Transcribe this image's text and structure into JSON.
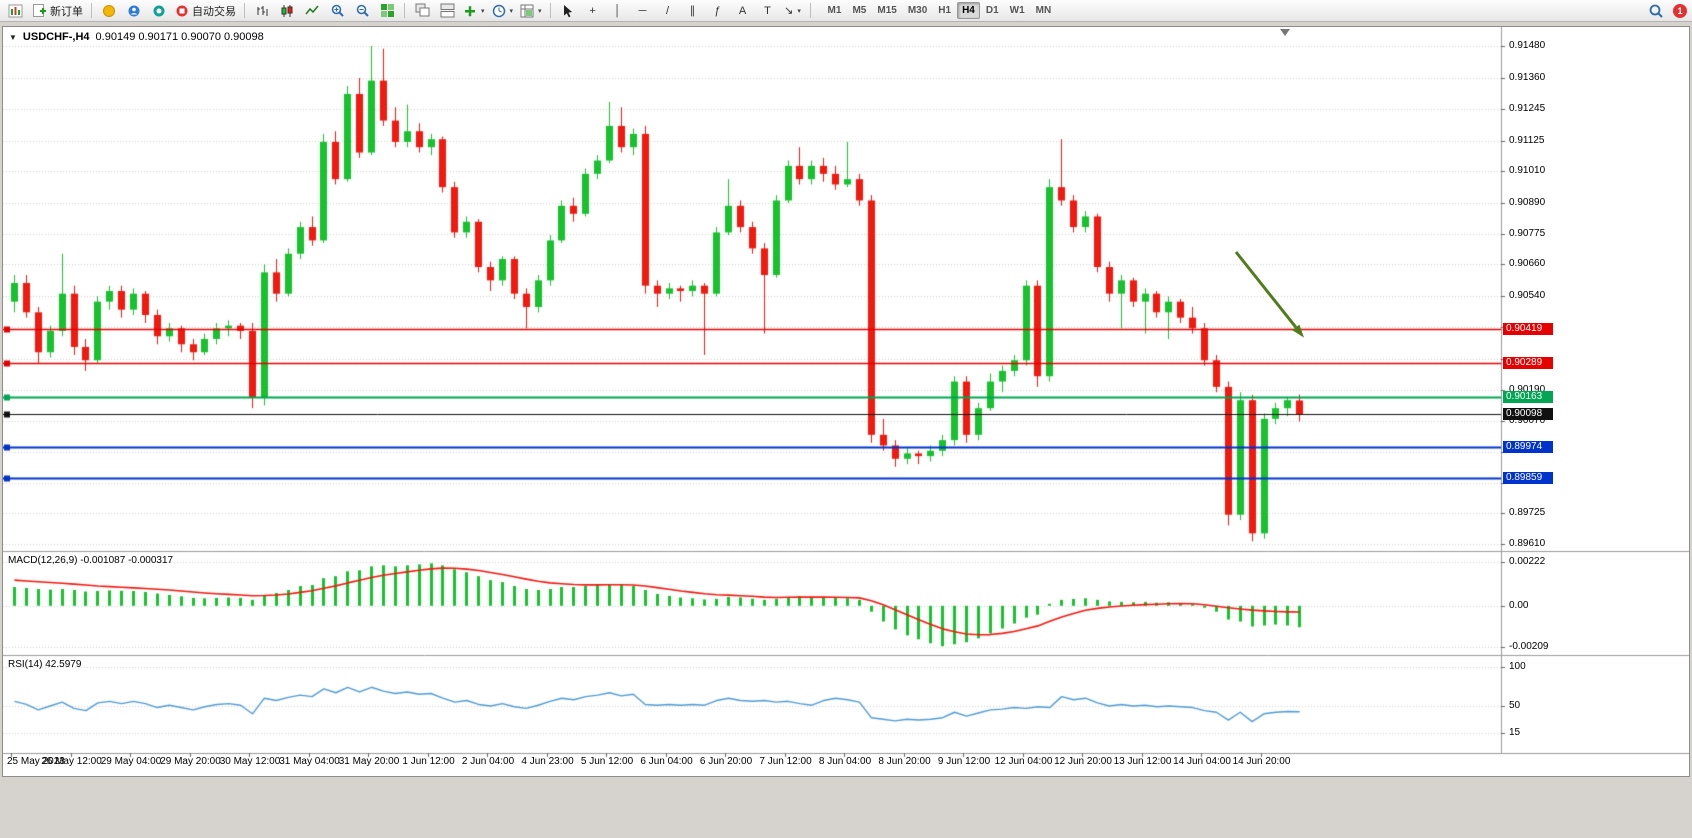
{
  "toolbar": {
    "buttons": {
      "new_order": "新订单",
      "auto_trading": "自动交易"
    },
    "timeframes": [
      "M1",
      "M5",
      "M15",
      "M30",
      "H1",
      "H4",
      "D1",
      "W1",
      "MN"
    ],
    "active_timeframe": "H4",
    "notification_count": "1"
  },
  "icons": {
    "caret": "▾",
    "dropdown_triangle": "▼",
    "crosshair": "+",
    "vertical_line": "│",
    "horizontal_line": "─",
    "trendline": "/",
    "channel": "∥",
    "fibonacci": "ƒ",
    "text_tool": "A",
    "label_tool": "T",
    "arrow_tool": "↘"
  },
  "chart": {
    "symbol_period": "USDCHF-,H4",
    "ohlc_text": "0.90149 0.90171 0.90070 0.90098",
    "ylim": [
      0.8961,
      0.9148
    ],
    "price_ticks": [
      "0.91480",
      "0.91360",
      "0.91245",
      "0.91125",
      "0.91010",
      "0.90890",
      "0.90775",
      "0.90660",
      "0.90540",
      "0.90425",
      "0.90305",
      "0.90190",
      "0.90070",
      "0.89955",
      "0.89840",
      "0.89725",
      "0.89610"
    ],
    "levels": [
      {
        "price": 0.90419,
        "label": "0.90419",
        "color": "#e60000",
        "width": 1.5,
        "name": "resistance-line-1"
      },
      {
        "price": 0.90289,
        "label": "0.90289",
        "color": "#e60000",
        "width": 1.5,
        "name": "resistance-line-2"
      },
      {
        "price": 0.90163,
        "label": "0.90163",
        "color": "#00a651",
        "width": 2,
        "name": "support-line-green"
      },
      {
        "price": 0.90098,
        "label": "0.90098",
        "color": "#111111",
        "width": 1,
        "name": "current-price-line"
      },
      {
        "price": 0.89974,
        "label": "0.89974",
        "color": "#0033cc",
        "width": 2,
        "name": "support-line-blue-1"
      },
      {
        "price": 0.89859,
        "label": "0.89859",
        "color": "#0033cc",
        "width": 2,
        "name": "support-line-blue-2"
      }
    ],
    "time_labels": [
      "25 May 2023",
      "26 May 12:00",
      "29 May 04:00",
      "29 May 20:00",
      "30 May 12:00",
      "31 May 04:00",
      "31 May 20:00",
      "1 Jun 12:00",
      "2 Jun 04:00",
      "4 Jun 23:00",
      "5 Jun 12:00",
      "6 Jun 04:00",
      "6 Jun 20:00",
      "7 Jun 12:00",
      "8 Jun 04:00",
      "8 Jun 20:00",
      "9 Jun 12:00",
      "12 Jun 04:00",
      "12 Jun 20:00",
      "13 Jun 12:00",
      "14 Jun 04:00",
      "14 Jun 20:00"
    ],
    "colors": {
      "up": "#17c22e",
      "down": "#f2190f",
      "grid": "#d4d4d4",
      "background": "#ffffff"
    },
    "candles": [
      [
        0.9052,
        0.9062,
        0.9048,
        0.9059
      ],
      [
        0.9059,
        0.9062,
        0.9046,
        0.9048
      ],
      [
        0.9048,
        0.905,
        0.9029,
        0.9033
      ],
      [
        0.9033,
        0.9043,
        0.9031,
        0.9041
      ],
      [
        0.9041,
        0.907,
        0.9039,
        0.9055
      ],
      [
        0.9055,
        0.9058,
        0.9032,
        0.9035
      ],
      [
        0.9035,
        0.9038,
        0.9026,
        0.903
      ],
      [
        0.903,
        0.9054,
        0.9029,
        0.9052
      ],
      [
        0.9052,
        0.9058,
        0.9049,
        0.9056
      ],
      [
        0.9056,
        0.9058,
        0.9046,
        0.9049
      ],
      [
        0.9049,
        0.9057,
        0.9047,
        0.9055
      ],
      [
        0.9055,
        0.9056,
        0.9044,
        0.9047
      ],
      [
        0.9047,
        0.9049,
        0.9036,
        0.9039
      ],
      [
        0.9039,
        0.9044,
        0.9037,
        0.9042
      ],
      [
        0.9042,
        0.9043,
        0.9033,
        0.9036
      ],
      [
        0.9036,
        0.9038,
        0.903,
        0.9033
      ],
      [
        0.9033,
        0.904,
        0.9032,
        0.9038
      ],
      [
        0.9038,
        0.9044,
        0.9036,
        0.9042
      ],
      [
        0.9042,
        0.9045,
        0.9039,
        0.9043
      ],
      [
        0.9043,
        0.9044,
        0.9038,
        0.9041
      ],
      [
        0.9041,
        0.9044,
        0.9012,
        0.9016
      ],
      [
        0.9016,
        0.9066,
        0.9013,
        0.9063
      ],
      [
        0.9063,
        0.9068,
        0.9052,
        0.9055
      ],
      [
        0.9055,
        0.9072,
        0.9054,
        0.907
      ],
      [
        0.907,
        0.9082,
        0.9068,
        0.908
      ],
      [
        0.908,
        0.9084,
        0.9073,
        0.9075
      ],
      [
        0.9075,
        0.9115,
        0.9074,
        0.9112
      ],
      [
        0.9112,
        0.9116,
        0.9096,
        0.9098
      ],
      [
        0.9098,
        0.9133,
        0.9097,
        0.913
      ],
      [
        0.913,
        0.9136,
        0.9106,
        0.9108
      ],
      [
        0.9108,
        0.9148,
        0.9107,
        0.9135
      ],
      [
        0.9135,
        0.9147,
        0.9118,
        0.912
      ],
      [
        0.912,
        0.9125,
        0.911,
        0.9112
      ],
      [
        0.9112,
        0.9126,
        0.911,
        0.9116
      ],
      [
        0.9116,
        0.9119,
        0.9108,
        0.911
      ],
      [
        0.911,
        0.9115,
        0.9107,
        0.9113
      ],
      [
        0.9113,
        0.9114,
        0.9093,
        0.9095
      ],
      [
        0.9095,
        0.9097,
        0.9076,
        0.9078
      ],
      [
        0.9078,
        0.9084,
        0.9076,
        0.9082
      ],
      [
        0.9082,
        0.9083,
        0.9063,
        0.9065
      ],
      [
        0.9065,
        0.9067,
        0.9056,
        0.906
      ],
      [
        0.906,
        0.9069,
        0.9058,
        0.9068
      ],
      [
        0.9068,
        0.9069,
        0.9053,
        0.9055
      ],
      [
        0.9055,
        0.9057,
        0.9042,
        0.905
      ],
      [
        0.905,
        0.9062,
        0.9048,
        0.906
      ],
      [
        0.906,
        0.9077,
        0.9058,
        0.9075
      ],
      [
        0.9075,
        0.909,
        0.9074,
        0.9088
      ],
      [
        0.9088,
        0.9091,
        0.9082,
        0.9085
      ],
      [
        0.9085,
        0.9102,
        0.9084,
        0.91
      ],
      [
        0.91,
        0.9107,
        0.9098,
        0.9105
      ],
      [
        0.9105,
        0.9127,
        0.9104,
        0.9118
      ],
      [
        0.9118,
        0.9125,
        0.9108,
        0.911
      ],
      [
        0.911,
        0.9117,
        0.9107,
        0.9115
      ],
      [
        0.9115,
        0.9118,
        0.9055,
        0.9058
      ],
      [
        0.9058,
        0.906,
        0.905,
        0.9055
      ],
      [
        0.9055,
        0.9059,
        0.9053,
        0.9057
      ],
      [
        0.9057,
        0.9058,
        0.9052,
        0.9056
      ],
      [
        0.9056,
        0.906,
        0.9054,
        0.9058
      ],
      [
        0.9058,
        0.9059,
        0.9032,
        0.9055
      ],
      [
        0.9055,
        0.908,
        0.9054,
        0.9078
      ],
      [
        0.9078,
        0.9098,
        0.9077,
        0.9088
      ],
      [
        0.9088,
        0.909,
        0.9078,
        0.908
      ],
      [
        0.908,
        0.9082,
        0.907,
        0.9072
      ],
      [
        0.9072,
        0.9074,
        0.904,
        0.9062
      ],
      [
        0.9062,
        0.9092,
        0.9061,
        0.909
      ],
      [
        0.909,
        0.9105,
        0.9089,
        0.9103
      ],
      [
        0.9103,
        0.911,
        0.9096,
        0.9098
      ],
      [
        0.9098,
        0.9105,
        0.9096,
        0.9103
      ],
      [
        0.9103,
        0.9106,
        0.9097,
        0.91
      ],
      [
        0.91,
        0.9103,
        0.9094,
        0.9096
      ],
      [
        0.9096,
        0.9112,
        0.9095,
        0.9098
      ],
      [
        0.9098,
        0.91,
        0.9088,
        0.909
      ],
      [
        0.909,
        0.9092,
        0.8999,
        0.9002
      ],
      [
        0.9002,
        0.9008,
        0.8996,
        0.8998
      ],
      [
        0.8998,
        0.9,
        0.899,
        0.8993
      ],
      [
        0.8993,
        0.8997,
        0.8991,
        0.8995
      ],
      [
        0.8995,
        0.8996,
        0.8991,
        0.8994
      ],
      [
        0.8994,
        0.8998,
        0.8992,
        0.8996
      ],
      [
        0.8996,
        0.9002,
        0.8994,
        0.9
      ],
      [
        0.9,
        0.9024,
        0.8998,
        0.9022
      ],
      [
        0.9022,
        0.9024,
        0.8999,
        0.9002
      ],
      [
        0.9002,
        0.9014,
        0.9,
        0.9012
      ],
      [
        0.9012,
        0.9025,
        0.9011,
        0.9022
      ],
      [
        0.9022,
        0.9028,
        0.9018,
        0.9026
      ],
      [
        0.9026,
        0.9032,
        0.9024,
        0.903
      ],
      [
        0.903,
        0.906,
        0.9028,
        0.9058
      ],
      [
        0.9058,
        0.906,
        0.902,
        0.9024
      ],
      [
        0.9024,
        0.9098,
        0.9022,
        0.9095
      ],
      [
        0.9095,
        0.9113,
        0.9088,
        0.909
      ],
      [
        0.909,
        0.9092,
        0.9078,
        0.908
      ],
      [
        0.908,
        0.9086,
        0.9078,
        0.9084
      ],
      [
        0.9084,
        0.9085,
        0.9063,
        0.9065
      ],
      [
        0.9065,
        0.9067,
        0.9052,
        0.9055
      ],
      [
        0.9055,
        0.9062,
        0.9042,
        0.906
      ],
      [
        0.906,
        0.9061,
        0.905,
        0.9052
      ],
      [
        0.9052,
        0.9057,
        0.904,
        0.9055
      ],
      [
        0.9055,
        0.9056,
        0.9046,
        0.9048
      ],
      [
        0.9048,
        0.9054,
        0.9038,
        0.9052
      ],
      [
        0.9052,
        0.9053,
        0.9044,
        0.9046
      ],
      [
        0.9046,
        0.905,
        0.904,
        0.9042
      ],
      [
        0.9042,
        0.9044,
        0.9028,
        0.903
      ],
      [
        0.903,
        0.9032,
        0.9018,
        0.902
      ],
      [
        0.902,
        0.9022,
        0.8968,
        0.8972
      ],
      [
        0.8972,
        0.9018,
        0.897,
        0.9015
      ],
      [
        0.9015,
        0.9017,
        0.8962,
        0.8965
      ],
      [
        0.8965,
        0.901,
        0.8963,
        0.9008
      ],
      [
        0.9008,
        0.9014,
        0.9006,
        0.9012
      ],
      [
        0.9012,
        0.9016,
        0.9009,
        0.9015
      ],
      [
        0.90149,
        0.90171,
        0.9007,
        0.90098
      ]
    ]
  },
  "macd": {
    "label": "MACD(12,26,9) -0.001087 -0.000317",
    "ticks": [
      "0.00222",
      "0.00",
      "-0.00209"
    ],
    "range": [
      -0.00209,
      0.00222
    ],
    "colors": {
      "histogram": "#17c22e",
      "signal": "#f2190f"
    },
    "histogram": [
      0.00095,
      0.0009,
      0.00085,
      0.00082,
      0.00085,
      0.0008,
      0.00072,
      0.00075,
      0.00078,
      0.00076,
      0.00075,
      0.0007,
      0.00062,
      0.00055,
      0.00048,
      0.0004,
      0.00038,
      0.0004,
      0.00042,
      0.0004,
      0.0003,
      0.00055,
      0.00065,
      0.0008,
      0.001,
      0.00105,
      0.0014,
      0.0015,
      0.00175,
      0.0018,
      0.002,
      0.00205,
      0.002,
      0.00205,
      0.0021,
      0.00215,
      0.00205,
      0.00185,
      0.0017,
      0.0015,
      0.0013,
      0.0012,
      0.001,
      0.00085,
      0.0008,
      0.00085,
      0.00095,
      0.00095,
      0.001,
      0.00105,
      0.0011,
      0.00105,
      0.001,
      0.0008,
      0.0006,
      0.0005,
      0.00042,
      0.00038,
      0.00032,
      0.00035,
      0.00045,
      0.00042,
      0.00036,
      0.0003,
      0.00035,
      0.00045,
      0.00048,
      0.00042,
      0.00045,
      0.0004,
      0.00038,
      0.0003,
      -0.0003,
      -0.0008,
      -0.0012,
      -0.0015,
      -0.0017,
      -0.0019,
      -0.00205,
      -0.00195,
      -0.00185,
      -0.00165,
      -0.0014,
      -0.00115,
      -0.0009,
      -0.0006,
      -0.00045,
      0.0001,
      0.0003,
      0.00035,
      0.00038,
      0.0003,
      0.00022,
      0.0002,
      0.00018,
      0.0002,
      0.00016,
      0.00018,
      0.00012,
      8e-05,
      -0.0001,
      -0.0003,
      -0.0007,
      -0.0008,
      -0.00105,
      -0.001,
      -0.00095,
      -0.001,
      -0.001087
    ],
    "signal": [
      0.0013,
      0.00126,
      0.00122,
      0.00118,
      0.00114,
      0.0011,
      0.00105,
      0.001,
      0.00097,
      0.00094,
      0.00091,
      0.00088,
      0.00084,
      0.0008,
      0.00075,
      0.0007,
      0.00065,
      0.00061,
      0.00058,
      0.00055,
      0.00051,
      0.00052,
      0.00055,
      0.0006,
      0.00068,
      0.00076,
      0.00089,
      0.00101,
      0.00116,
      0.00129,
      0.00143,
      0.00155,
      0.00164,
      0.00172,
      0.0018,
      0.00187,
      0.00191,
      0.0019,
      0.00186,
      0.00179,
      0.00169,
      0.00159,
      0.00147,
      0.00135,
      0.00124,
      0.00116,
      0.00112,
      0.00108,
      0.00106,
      0.00106,
      0.00107,
      0.00107,
      0.00105,
      0.001,
      0.00092,
      0.00084,
      0.00075,
      0.00068,
      0.00061,
      0.00056,
      0.00054,
      0.00051,
      0.00048,
      0.00044,
      0.00042,
      0.00043,
      0.00044,
      0.00044,
      0.00044,
      0.00043,
      0.00042,
      0.0004,
      0.00026,
      5e-05,
      -0.0002,
      -0.00046,
      -0.00071,
      -0.00095,
      -0.00117,
      -0.00132,
      -0.00143,
      -0.00147,
      -0.00146,
      -0.0014,
      -0.0013,
      -0.00116,
      -0.00102,
      -0.00079,
      -0.00057,
      -0.00039,
      -0.00023,
      -0.00013,
      -6e-05,
      -1e-05,
      3e-05,
      6e-05,
      8e-05,
      0.0001,
      0.00011,
      0.0001,
      5e-05,
      -2e-05,
      -0.0001,
      -0.00016,
      -0.00022,
      -0.00026,
      -0.00029,
      -0.00031,
      -0.000317
    ]
  },
  "rsi": {
    "label": "RSI(14) 42.5979",
    "ticks": [
      "100",
      "50",
      "15"
    ],
    "color": "#4f9bd5",
    "values": [
      56,
      52,
      45,
      50,
      55,
      47,
      44,
      54,
      56,
      53,
      56,
      53,
      48,
      51,
      48,
      45,
      49,
      52,
      53,
      51,
      40,
      60,
      57,
      61,
      64,
      62,
      72,
      67,
      74,
      68,
      74,
      69,
      66,
      68,
      65,
      66,
      60,
      55,
      57,
      52,
      50,
      53,
      49,
      47,
      51,
      56,
      60,
      58,
      62,
      64,
      67,
      63,
      65,
      52,
      51,
      52,
      51,
      52,
      51,
      57,
      60,
      57,
      56,
      57,
      55,
      56,
      53,
      51,
      57,
      60,
      58,
      55,
      35,
      33,
      31,
      33,
      32,
      33,
      35,
      42,
      37,
      41,
      45,
      46,
      48,
      47,
      49,
      48,
      62,
      58,
      60,
      54,
      50,
      52,
      50,
      51,
      49,
      50,
      49,
      48,
      44,
      42,
      32,
      42,
      30,
      40,
      42,
      43,
      42.6
    ]
  },
  "annotation": {
    "arrow_color": "#4e7d1a"
  }
}
